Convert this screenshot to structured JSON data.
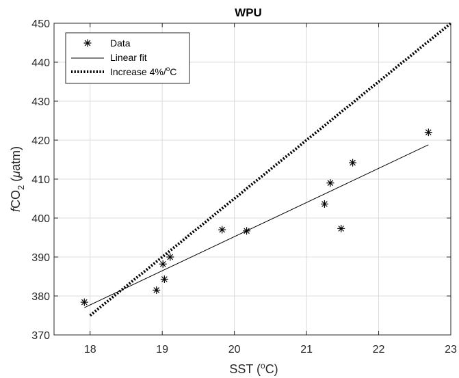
{
  "chart_data": {
    "type": "scatter",
    "title": "WPU",
    "xlabel": "SST (°C)",
    "xlabel_parts": {
      "prefix": "SST (",
      "sup": "o",
      "suffix": "C)"
    },
    "ylabel": "fCO2 (µatm)",
    "ylabel_parts": {
      "italic": "f",
      "main": "CO",
      "sub": "2",
      "mid": " (",
      "greek": "μ",
      "suffix": "atm)"
    },
    "xlim": [
      17.5,
      23
    ],
    "ylim": [
      370,
      450
    ],
    "xticks": [
      18,
      19,
      20,
      21,
      22,
      23
    ],
    "yticks": [
      370,
      380,
      390,
      400,
      410,
      420,
      430,
      440,
      450
    ],
    "grid": true,
    "legend_position": "top-left",
    "series": [
      {
        "name": "Data",
        "kind": "markers",
        "marker": "asterisk",
        "color": "#000000",
        "x": [
          17.92,
          18.92,
          19.01,
          19.03,
          19.11,
          19.83,
          20.17,
          21.25,
          21.33,
          21.48,
          21.64,
          22.69
        ],
        "y": [
          378.4,
          381.5,
          388.2,
          384.3,
          390.0,
          397.0,
          396.7,
          403.6,
          409.0,
          397.3,
          414.2,
          422.0
        ]
      },
      {
        "name": "Linear fit",
        "kind": "line",
        "style": "solid",
        "color": "#000000",
        "x": [
          17.92,
          22.69
        ],
        "y": [
          377.0,
          418.8
        ]
      },
      {
        "name": "Increase 4%/oC",
        "legend_parts": {
          "prefix": "Increase 4%/",
          "sup": "o",
          "suffix": "C"
        },
        "kind": "line",
        "style": "dotted",
        "color": "#000000",
        "x": [
          18.0,
          23.0
        ],
        "y": [
          375.0,
          450.0
        ]
      }
    ]
  }
}
